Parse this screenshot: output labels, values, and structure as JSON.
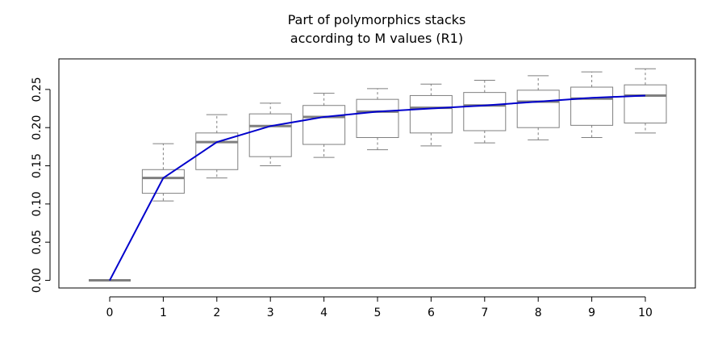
{
  "chart_data": {
    "type": "box",
    "title_lines": [
      "Part of polymorphics stacks",
      "according to M values (R1)"
    ],
    "xlabel": "",
    "ylabel": "",
    "categories": [
      "0",
      "1",
      "2",
      "3",
      "4",
      "5",
      "6",
      "7",
      "8",
      "9",
      "10"
    ],
    "ylim": [
      -0.01,
      0.29
    ],
    "yticks": [
      "0.00",
      "0.05",
      "0.10",
      "0.15",
      "0.20",
      "0.25"
    ],
    "boxes": [
      {
        "x": "0",
        "whisker_low": 0.0,
        "q1": 0.0,
        "median": 0.0,
        "q3": 0.0,
        "whisker_high": 0.0
      },
      {
        "x": "1",
        "whisker_low": 0.104,
        "q1": 0.114,
        "median": 0.134,
        "q3": 0.145,
        "whisker_high": 0.179
      },
      {
        "x": "2",
        "whisker_low": 0.134,
        "q1": 0.145,
        "median": 0.181,
        "q3": 0.193,
        "whisker_high": 0.217
      },
      {
        "x": "3",
        "whisker_low": 0.15,
        "q1": 0.162,
        "median": 0.202,
        "q3": 0.218,
        "whisker_high": 0.232
      },
      {
        "x": "4",
        "whisker_low": 0.161,
        "q1": 0.178,
        "median": 0.214,
        "q3": 0.229,
        "whisker_high": 0.245
      },
      {
        "x": "5",
        "whisker_low": 0.171,
        "q1": 0.187,
        "median": 0.221,
        "q3": 0.237,
        "whisker_high": 0.251
      },
      {
        "x": "6",
        "whisker_low": 0.176,
        "q1": 0.193,
        "median": 0.226,
        "q3": 0.242,
        "whisker_high": 0.257
      },
      {
        "x": "7",
        "whisker_low": 0.18,
        "q1": 0.196,
        "median": 0.229,
        "q3": 0.246,
        "whisker_high": 0.262
      },
      {
        "x": "8",
        "whisker_low": 0.184,
        "q1": 0.2,
        "median": 0.234,
        "q3": 0.249,
        "whisker_high": 0.268
      },
      {
        "x": "9",
        "whisker_low": 0.187,
        "q1": 0.203,
        "median": 0.238,
        "q3": 0.253,
        "whisker_high": 0.273
      },
      {
        "x": "10",
        "whisker_low": 0.193,
        "q1": 0.206,
        "median": 0.242,
        "q3": 0.256,
        "whisker_high": 0.277
      }
    ],
    "mean_line": {
      "x": [
        0,
        1,
        2,
        3,
        4,
        5,
        6,
        7,
        8,
        9,
        10
      ],
      "y": [
        0.0,
        0.134,
        0.181,
        0.202,
        0.214,
        0.221,
        0.225,
        0.229,
        0.234,
        0.239,
        0.242
      ]
    },
    "grid": false,
    "colors": {
      "box_stroke": "#7f7f7f",
      "median": "#7f7f7f",
      "whisker": "#7f7f7f",
      "line": "#0000cc",
      "axis": "#000000"
    }
  }
}
